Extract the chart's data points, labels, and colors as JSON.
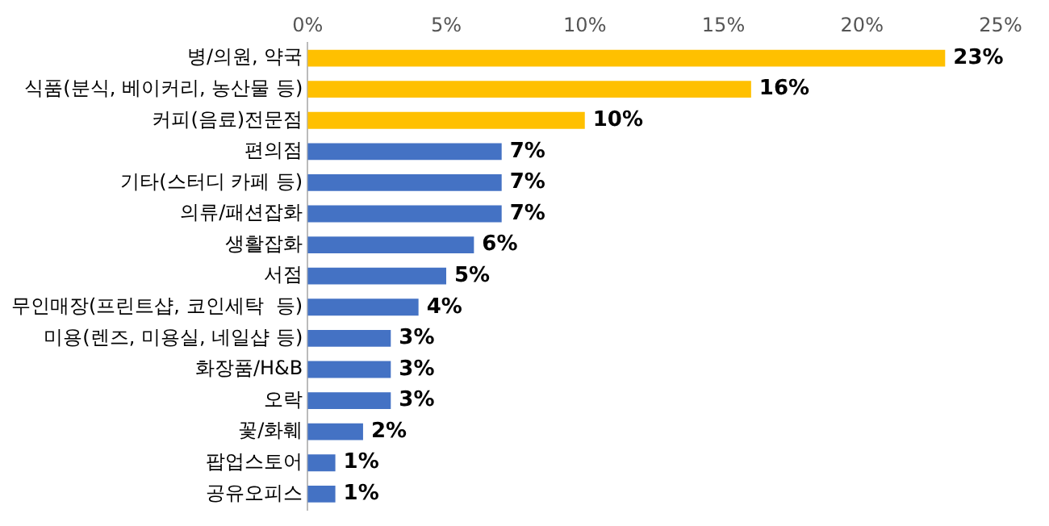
{
  "chart_data": {
    "type": "bar",
    "orientation": "horizontal",
    "categories": [
      "병/의원, 약국",
      "식품(분식, 베이커리, 농산물 등)",
      "커피(음료)전문점",
      "편의점",
      "기타(스터디 카페 등)",
      "의류/패션잡화",
      "생활잡화",
      "서점",
      "무인매장(프린트샵, 코인세탁  등)",
      "미용(렌즈, 미용실, 네일샵 등)",
      "화장품/H&B",
      "오락",
      "꽃/화훼",
      "팝업스토어",
      "공유오피스"
    ],
    "values": [
      23,
      16,
      10,
      7,
      7,
      7,
      6,
      5,
      4,
      3,
      3,
      3,
      2,
      1,
      1
    ],
    "colors": [
      "#ffc000",
      "#ffc000",
      "#ffc000",
      "#4472c4",
      "#4472c4",
      "#4472c4",
      "#4472c4",
      "#4472c4",
      "#4472c4",
      "#4472c4",
      "#4472c4",
      "#4472c4",
      "#4472c4",
      "#4472c4",
      "#4472c4"
    ],
    "value_labels": [
      "23%",
      "16%",
      "10%",
      "7%",
      "7%",
      "7%",
      "6%",
      "5%",
      "4%",
      "3%",
      "3%",
      "3%",
      "2%",
      "1%",
      "1%"
    ],
    "xlim": [
      0,
      25
    ],
    "xticks": [
      {
        "value": 0,
        "label": "0%"
      },
      {
        "value": 5,
        "label": "5%"
      },
      {
        "value": 10,
        "label": "10%"
      },
      {
        "value": 15,
        "label": "15%"
      },
      {
        "value": 20,
        "label": "20%"
      },
      {
        "value": 25,
        "label": "25%"
      }
    ],
    "grid": false,
    "legend": false
  }
}
